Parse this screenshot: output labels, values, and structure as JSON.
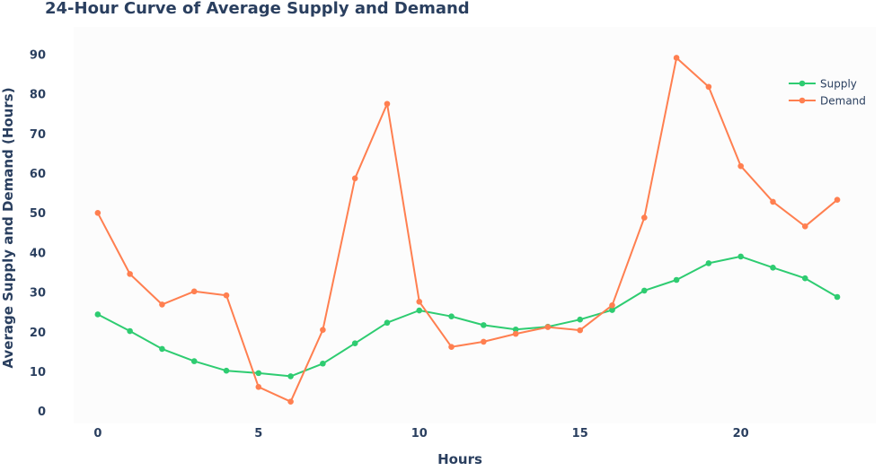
{
  "chart_data": {
    "type": "line",
    "title": "24-Hour Curve of Average Supply and Demand",
    "xlabel": "Hours",
    "ylabel": "Average Supply and Demand (Hours)",
    "x": [
      0,
      1,
      2,
      3,
      4,
      5,
      6,
      7,
      8,
      9,
      10,
      11,
      12,
      13,
      14,
      15,
      16,
      17,
      18,
      19,
      20,
      21,
      22,
      23
    ],
    "xlim": [
      -0.75,
      24.2
    ],
    "ylim": [
      -3,
      97
    ],
    "x_ticks": [
      0,
      5,
      10,
      15,
      20
    ],
    "y_ticks": [
      0,
      10,
      20,
      30,
      40,
      50,
      60,
      70,
      80,
      90
    ],
    "grid": false,
    "legend_position": "top-right",
    "plot_background": "#fcfcfc",
    "series": [
      {
        "name": "Supply",
        "color": "#2ecc71",
        "values": [
          24.5,
          20.3,
          15.8,
          12.7,
          10.3,
          9.7,
          8.9,
          12.1,
          17.2,
          22.4,
          25.5,
          24.0,
          21.8,
          20.7,
          21.4,
          23.2,
          25.6,
          30.5,
          33.2,
          37.4,
          39.1,
          36.3,
          33.6,
          28.9
        ]
      },
      {
        "name": "Demand",
        "color": "#ff7f50",
        "values": [
          50.1,
          34.7,
          27.0,
          30.3,
          29.3,
          6.2,
          2.5,
          20.6,
          58.8,
          77.6,
          27.7,
          16.3,
          17.6,
          19.6,
          21.3,
          20.5,
          26.8,
          48.9,
          89.2,
          81.9,
          61.9,
          52.9,
          46.7,
          53.4
        ]
      }
    ]
  }
}
